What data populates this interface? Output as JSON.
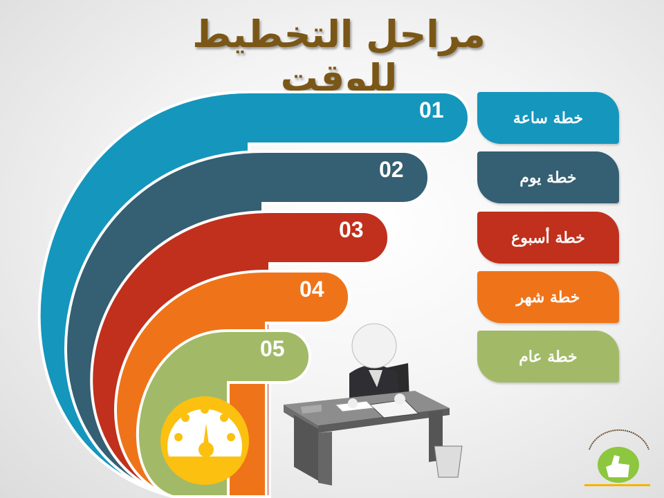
{
  "title": "مراحل التخطيط للوقت",
  "stages": [
    {
      "number": "01",
      "label": "خطة ساعة",
      "color": "#1596bd"
    },
    {
      "number": "02",
      "label": "خطة يوم",
      "color": "#355f72"
    },
    {
      "number": "03",
      "label": "خطة أسبوع",
      "color": "#c0301c"
    },
    {
      "number": "04",
      "label": "خطة شهر",
      "color": "#ef7419"
    },
    {
      "number": "05",
      "label": "خطة عام",
      "color": "#a2ba68"
    }
  ],
  "icons": {
    "gauge": "speedometer-icon",
    "person": "person-writing-at-desk",
    "logo": "thumbs-up-logo"
  },
  "gauge_color": "#fcc010",
  "title_color": "#7a5716"
}
